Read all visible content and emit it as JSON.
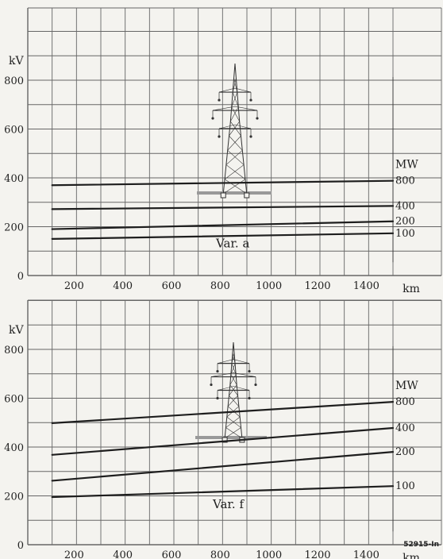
{
  "ref_code": "52915-In",
  "chart_data": [
    {
      "type": "line",
      "title": "",
      "variant_label": "Var. a",
      "ylabel": "kV",
      "xlabel": "km",
      "legend_title": "MW",
      "ylim": [
        0,
        900
      ],
      "xlim": [
        0,
        1500
      ],
      "x_ticks": [
        "200",
        "400",
        "600",
        "800",
        "1000",
        "1200",
        "1400"
      ],
      "y_ticks": [
        "0",
        "200",
        "400",
        "600",
        "800"
      ],
      "grid": true,
      "series": [
        {
          "name": "800",
          "x": [
            100,
            1500
          ],
          "y": [
            370,
            388
          ]
        },
        {
          "name": "400",
          "x": [
            100,
            1500
          ],
          "y": [
            272,
            285
          ]
        },
        {
          "name": "200",
          "x": [
            100,
            1500
          ],
          "y": [
            190,
            222
          ]
        },
        {
          "name": "100",
          "x": [
            100,
            1500
          ],
          "y": [
            150,
            173
          ]
        }
      ]
    },
    {
      "type": "line",
      "title": "",
      "variant_label": "Var. f",
      "ylabel": "kV",
      "xlabel": "km",
      "legend_title": "MW",
      "ylim": [
        0,
        900
      ],
      "xlim": [
        0,
        1500
      ],
      "x_ticks": [
        "200",
        "400",
        "600",
        "800",
        "1000",
        "1200",
        "1400"
      ],
      "y_ticks": [
        "0",
        "200",
        "400",
        "600",
        "800"
      ],
      "grid": true,
      "series": [
        {
          "name": "800",
          "x": [
            100,
            1500
          ],
          "y": [
            498,
            585
          ]
        },
        {
          "name": "400",
          "x": [
            100,
            1500
          ],
          "y": [
            368,
            478
          ]
        },
        {
          "name": "200",
          "x": [
            100,
            1500
          ],
          "y": [
            262,
            380
          ]
        },
        {
          "name": "100",
          "x": [
            100,
            1500
          ],
          "y": [
            195,
            240
          ]
        }
      ]
    }
  ]
}
